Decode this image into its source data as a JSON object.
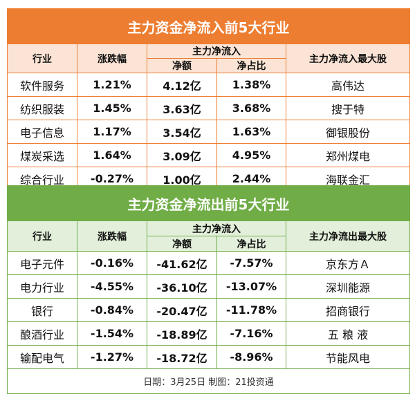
{
  "inflow": {
    "title": "主力资金净流入前5大行业",
    "headers": {
      "industry": "行业",
      "change": "涨跌幅",
      "group": "主力净流入",
      "amount": "净额",
      "ratio": "净占比",
      "top_stock": "主力净流入最大股"
    },
    "rows": [
      {
        "industry": "软件服务",
        "change": "1.21%",
        "amount": "4.12亿",
        "ratio": "1.38%",
        "top_stock": "高伟达"
      },
      {
        "industry": "纺织服装",
        "change": "1.45%",
        "amount": "3.63亿",
        "ratio": "3.68%",
        "top_stock": "搜于特"
      },
      {
        "industry": "电子信息",
        "change": "1.17%",
        "amount": "3.54亿",
        "ratio": "1.63%",
        "top_stock": "御银股份"
      },
      {
        "industry": "煤炭采选",
        "change": "1.64%",
        "amount": "3.09亿",
        "ratio": "4.95%",
        "top_stock": "郑州煤电"
      },
      {
        "industry": "综合行业",
        "change": "-0.27%",
        "amount": "1.00亿",
        "ratio": "2.44%",
        "top_stock": "海联金汇"
      }
    ]
  },
  "outflow": {
    "title": "主力资金净流出前5大行业",
    "headers": {
      "industry": "行业",
      "change": "涨跌幅",
      "group": "主力净流入",
      "amount": "净额",
      "ratio": "净占比",
      "top_stock": "主力净流出最大股"
    },
    "rows": [
      {
        "industry": "电子元件",
        "change": "-0.16%",
        "amount": "-41.62亿",
        "ratio": "-7.57%",
        "top_stock": "京东方Ａ"
      },
      {
        "industry": "电力行业",
        "change": "-4.55%",
        "amount": "-36.10亿",
        "ratio": "-13.07%",
        "top_stock": "深圳能源"
      },
      {
        "industry": "银行",
        "change": "-0.84%",
        "amount": "-20.47亿",
        "ratio": "-11.78%",
        "top_stock": "招商银行"
      },
      {
        "industry": "酿酒行业",
        "change": "-1.54%",
        "amount": "-18.89亿",
        "ratio": "-7.16%",
        "top_stock": "五 粮 液"
      },
      {
        "industry": "输配电气",
        "change": "-1.27%",
        "amount": "-18.72亿",
        "ratio": "-8.96%",
        "top_stock": "节能风电"
      }
    ],
    "footer": "日期：3月25日 制图：21投资通"
  },
  "colors": {
    "inflow_accent": "#ED7D31",
    "inflow_header_bg": "#FBE4D5",
    "outflow_accent": "#70AD47",
    "outflow_header_bg": "#E2EFDA"
  }
}
